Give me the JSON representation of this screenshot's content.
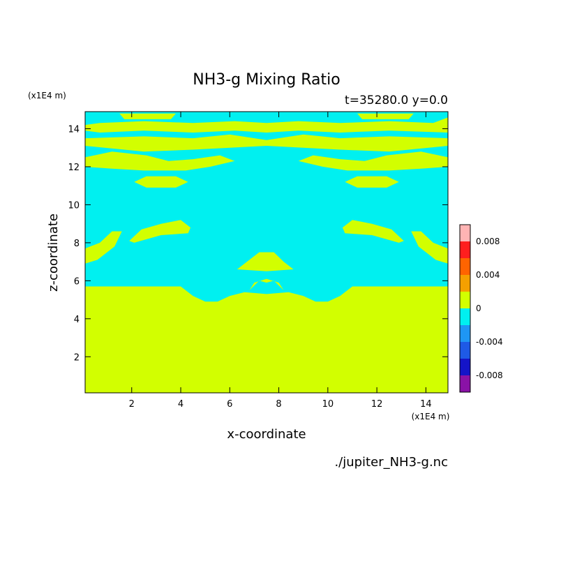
{
  "chart_data": {
    "type": "heatmap",
    "title": "NH3-g Mixing Ratio",
    "subtitle": "t=35280.0 y=0.0",
    "xlabel": "x-coordinate",
    "ylabel": "z-coordinate",
    "x_unit": "(x1E4 m)",
    "y_unit": "(x1E4 m)",
    "xlim": [
      0.1,
      14.9
    ],
    "ylim": [
      0.1,
      14.9
    ],
    "x_ticks": [
      2,
      4,
      6,
      8,
      10,
      12,
      14
    ],
    "y_ticks": [
      2,
      4,
      6,
      8,
      10,
      12,
      14
    ],
    "grid": false,
    "source": "./jupiter_NH3-g.nc",
    "colorbar": {
      "levels": [
        -0.01,
        -0.008,
        -0.006,
        -0.004,
        -0.002,
        0,
        0.002,
        0.004,
        0.006,
        0.008,
        0.01
      ],
      "colors": [
        "#8a12a6",
        "#1414c8",
        "#1e5ae6",
        "#1e96f5",
        "#00f0f0",
        "#d2ff00",
        "#f5a000",
        "#ff6400",
        "#ff1e1e",
        "#ffb4b4"
      ],
      "tick_values": [
        0.008,
        0.004,
        0,
        -0.004,
        -0.008
      ],
      "tick_labels": [
        "0.008",
        "0.004",
        "0",
        "-0.004",
        "-0.008"
      ]
    },
    "background_color": "#00f0f0",
    "positive_color": "#d2ff00",
    "positive_regions": [
      {
        "region": "lower-layer",
        "boundary": [
          [
            0.1,
            5.7
          ],
          [
            4.0,
            5.7
          ],
          [
            4.5,
            5.2
          ],
          [
            5.0,
            4.9
          ],
          [
            5.5,
            4.9
          ],
          [
            6.0,
            5.2
          ],
          [
            6.6,
            5.4
          ],
          [
            7.5,
            5.3
          ],
          [
            8.4,
            5.4
          ],
          [
            9.0,
            5.2
          ],
          [
            9.5,
            4.9
          ],
          [
            10.0,
            4.9
          ],
          [
            10.5,
            5.2
          ],
          [
            11.0,
            5.7
          ],
          [
            14.9,
            5.7
          ],
          [
            14.9,
            0.1
          ],
          [
            0.1,
            0.1
          ]
        ]
      },
      {
        "region": "central-blob",
        "boundary": [
          [
            6.8,
            5.5
          ],
          [
            7.2,
            6.0
          ],
          [
            7.5,
            5.9
          ],
          [
            7.8,
            6.0
          ],
          [
            8.2,
            5.5
          ],
          [
            8.0,
            5.9
          ],
          [
            7.5,
            6.1
          ],
          [
            7.0,
            5.9
          ]
        ]
      },
      {
        "region": "central-plume",
        "boundary": [
          [
            6.3,
            6.6
          ],
          [
            6.8,
            7.1
          ],
          [
            7.2,
            7.5
          ],
          [
            7.8,
            7.5
          ],
          [
            8.2,
            7.0
          ],
          [
            8.6,
            6.6
          ],
          [
            7.5,
            6.5
          ]
        ]
      },
      {
        "region": "left-arm",
        "boundary": [
          [
            1.9,
            8.1
          ],
          [
            2.4,
            8.7
          ],
          [
            3.2,
            9.0
          ],
          [
            4.0,
            9.2
          ],
          [
            4.4,
            8.8
          ],
          [
            4.3,
            8.5
          ],
          [
            3.2,
            8.4
          ],
          [
            2.1,
            8.0
          ]
        ]
      },
      {
        "region": "right-arm",
        "boundary": [
          [
            10.6,
            8.8
          ],
          [
            11.0,
            9.2
          ],
          [
            11.8,
            9.0
          ],
          [
            12.6,
            8.7
          ],
          [
            13.1,
            8.1
          ],
          [
            12.9,
            8.0
          ],
          [
            11.8,
            8.4
          ],
          [
            10.7,
            8.5
          ]
        ]
      },
      {
        "region": "left-edge-lobe",
        "boundary": [
          [
            0.1,
            6.9
          ],
          [
            0.6,
            7.1
          ],
          [
            1.3,
            7.8
          ],
          [
            1.6,
            8.6
          ],
          [
            1.2,
            8.6
          ],
          [
            0.7,
            8.0
          ],
          [
            0.1,
            7.7
          ]
        ]
      },
      {
        "region": "right-edge-lobe",
        "boundary": [
          [
            14.9,
            6.9
          ],
          [
            14.4,
            7.1
          ],
          [
            13.7,
            7.8
          ],
          [
            13.4,
            8.6
          ],
          [
            13.8,
            8.6
          ],
          [
            14.3,
            8.0
          ],
          [
            14.9,
            7.7
          ]
        ]
      },
      {
        "region": "left-band-11",
        "boundary": [
          [
            2.1,
            11.2
          ],
          [
            2.6,
            11.5
          ],
          [
            3.8,
            11.5
          ],
          [
            4.3,
            11.2
          ],
          [
            3.8,
            10.9
          ],
          [
            2.6,
            10.9
          ]
        ]
      },
      {
        "region": "right-band-11",
        "boundary": [
          [
            10.7,
            11.2
          ],
          [
            11.2,
            11.5
          ],
          [
            12.4,
            11.5
          ],
          [
            12.9,
            11.2
          ],
          [
            12.4,
            10.9
          ],
          [
            11.2,
            10.9
          ]
        ]
      },
      {
        "region": "left-band-12",
        "boundary": [
          [
            0.1,
            12.5
          ],
          [
            1.2,
            12.8
          ],
          [
            2.6,
            12.6
          ],
          [
            3.5,
            12.3
          ],
          [
            4.5,
            12.4
          ],
          [
            5.6,
            12.6
          ],
          [
            6.2,
            12.3
          ],
          [
            5.2,
            12.0
          ],
          [
            4.2,
            11.8
          ],
          [
            2.5,
            11.8
          ],
          [
            1.2,
            11.9
          ],
          [
            0.1,
            12.0
          ]
        ]
      },
      {
        "region": "right-band-12",
        "boundary": [
          [
            14.9,
            12.5
          ],
          [
            13.8,
            12.8
          ],
          [
            12.4,
            12.6
          ],
          [
            11.5,
            12.3
          ],
          [
            10.5,
            12.4
          ],
          [
            9.4,
            12.6
          ],
          [
            8.8,
            12.3
          ],
          [
            9.8,
            12.0
          ],
          [
            10.8,
            11.8
          ],
          [
            12.5,
            11.8
          ],
          [
            13.8,
            11.9
          ],
          [
            14.9,
            12.0
          ]
        ]
      },
      {
        "region": "upper-band-13",
        "boundary": [
          [
            0.1,
            13.5
          ],
          [
            2.5,
            13.6
          ],
          [
            4.5,
            13.5
          ],
          [
            6.0,
            13.7
          ],
          [
            7.5,
            13.4
          ],
          [
            9.0,
            13.7
          ],
          [
            10.5,
            13.5
          ],
          [
            12.5,
            13.6
          ],
          [
            14.9,
            13.5
          ],
          [
            14.9,
            13.1
          ],
          [
            12.5,
            12.8
          ],
          [
            10.5,
            12.9
          ],
          [
            9.0,
            13.0
          ],
          [
            7.5,
            13.1
          ],
          [
            6.0,
            13.0
          ],
          [
            4.5,
            12.9
          ],
          [
            2.5,
            12.8
          ],
          [
            0.1,
            13.1
          ]
        ]
      },
      {
        "region": "top-band-14",
        "boundary": [
          [
            0.7,
            14.3
          ],
          [
            2.5,
            14.4
          ],
          [
            4.5,
            14.3
          ],
          [
            6.2,
            14.4
          ],
          [
            7.5,
            14.3
          ],
          [
            8.8,
            14.4
          ],
          [
            10.5,
            14.3
          ],
          [
            12.5,
            14.4
          ],
          [
            14.3,
            14.3
          ],
          [
            14.9,
            14.6
          ],
          [
            14.9,
            13.8
          ],
          [
            12.5,
            13.9
          ],
          [
            10.5,
            13.8
          ],
          [
            8.8,
            13.9
          ],
          [
            7.5,
            13.8
          ],
          [
            6.2,
            13.9
          ],
          [
            4.5,
            13.8
          ],
          [
            2.5,
            13.9
          ],
          [
            0.7,
            13.8
          ],
          [
            0.1,
            13.9
          ],
          [
            0.1,
            14.2
          ]
        ]
      },
      {
        "region": "top-left-cap",
        "boundary": [
          [
            1.5,
            14.8
          ],
          [
            3.8,
            14.8
          ],
          [
            3.6,
            14.5
          ],
          [
            1.7,
            14.5
          ]
        ]
      },
      {
        "region": "top-right-cap",
        "boundary": [
          [
            11.2,
            14.8
          ],
          [
            13.5,
            14.8
          ],
          [
            13.3,
            14.5
          ],
          [
            11.4,
            14.5
          ]
        ]
      }
    ]
  }
}
